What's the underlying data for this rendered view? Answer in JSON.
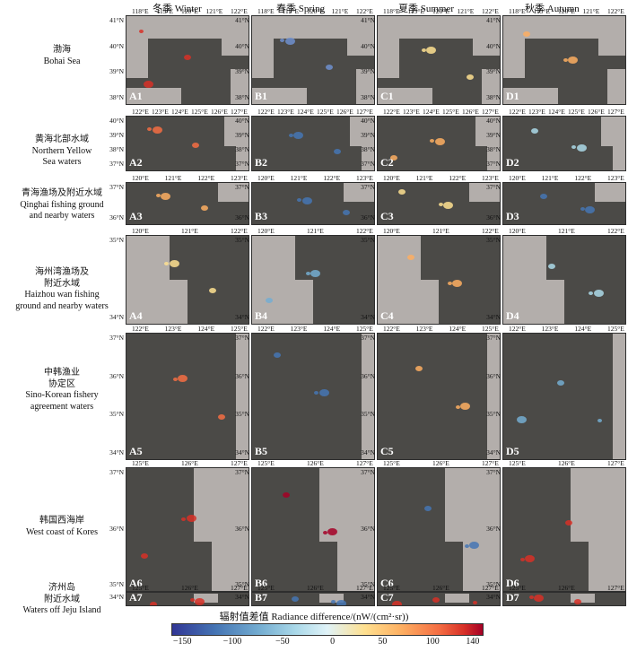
{
  "columns": [
    {
      "name": "冬季 Winter"
    },
    {
      "name": "春季 Spring"
    },
    {
      "name": "夏季 Summer"
    },
    {
      "name": "秋季 Autumn"
    }
  ],
  "rows": [
    {
      "label_lines": [
        "渤海",
        "Bohai Sea"
      ]
    },
    {
      "label_lines": [
        "黄海北部水域",
        "Northern Yellow",
        "Sea waters"
      ]
    },
    {
      "label_lines": [
        "青海渔场及附近水域",
        "Qinghai fishing ground",
        "and nearby waters"
      ]
    },
    {
      "label_lines": [
        "海州湾渔场及",
        "附近水域",
        "Haizhou wan fishing",
        "ground and nearby waters"
      ]
    },
    {
      "label_lines": [
        "中韩渔业",
        "协定区",
        "Sino-Korean fishery",
        "agreement waters"
      ]
    },
    {
      "label_lines": [
        "韩国西海岸",
        "West coast of Kores"
      ]
    },
    {
      "label_lines": [
        "济州岛",
        "附近水域",
        "Waters off Jeju Island"
      ]
    }
  ],
  "panel_ids": [
    [
      "A1",
      "B1",
      "C1",
      "D1"
    ],
    [
      "A2",
      "B2",
      "C2",
      "D2"
    ],
    [
      "A3",
      "B3",
      "C3",
      "D3"
    ],
    [
      "A4",
      "B4",
      "C4",
      "D4"
    ],
    [
      "A5",
      "B5",
      "C5",
      "D5"
    ],
    [
      "A6",
      "B6",
      "C6",
      "D6"
    ],
    [
      "A7",
      "B7",
      "C7",
      "D7"
    ]
  ],
  "row_axes": [
    {
      "lon": [
        "118°E",
        "119°E",
        "120°E",
        "121°E",
        "122°E"
      ],
      "lat": [
        "41°N",
        "40°N",
        "39°N",
        "38°N"
      ]
    },
    {
      "lon": [
        "122°E",
        "123°E",
        "124°E",
        "125°E",
        "126°E",
        "127°E"
      ],
      "lat": [
        "40°N",
        "39°N",
        "38°N",
        "37°N"
      ]
    },
    {
      "lon": [
        "120°E",
        "121°E",
        "122°E",
        "123°E"
      ],
      "lat": [
        "37°N",
        "36°N"
      ]
    },
    {
      "lon": [
        "120°E",
        "121°E",
        "122°E"
      ],
      "lat": [
        "35°N",
        "34°N"
      ]
    },
    {
      "lon": [
        "122°E",
        "123°E",
        "124°E",
        "125°E"
      ],
      "lat": [
        "37°N",
        "36°N",
        "35°N",
        "34°N"
      ]
    },
    {
      "lon": [
        "125°E",
        "126°E",
        "127°E"
      ],
      "lat": [
        "37°N",
        "36°N",
        "35°N"
      ]
    },
    {
      "lon": [
        "125°E",
        "126°E",
        "127°E"
      ],
      "lat": [
        "34°N"
      ]
    }
  ],
  "colorbar": {
    "title": "辐射值差值 Radiance difference/(nW/(cm²·sr))",
    "ticks": [
      "−150",
      "−100",
      "−50",
      "0",
      "50",
      "100",
      "140"
    ],
    "min": -160,
    "max": 150
  },
  "colors": {
    "sea": "#4b4a47",
    "land": "#b3aeab",
    "negative": "#4575b4",
    "neutral": "#e0f3f8",
    "positive": "#d73027"
  }
}
